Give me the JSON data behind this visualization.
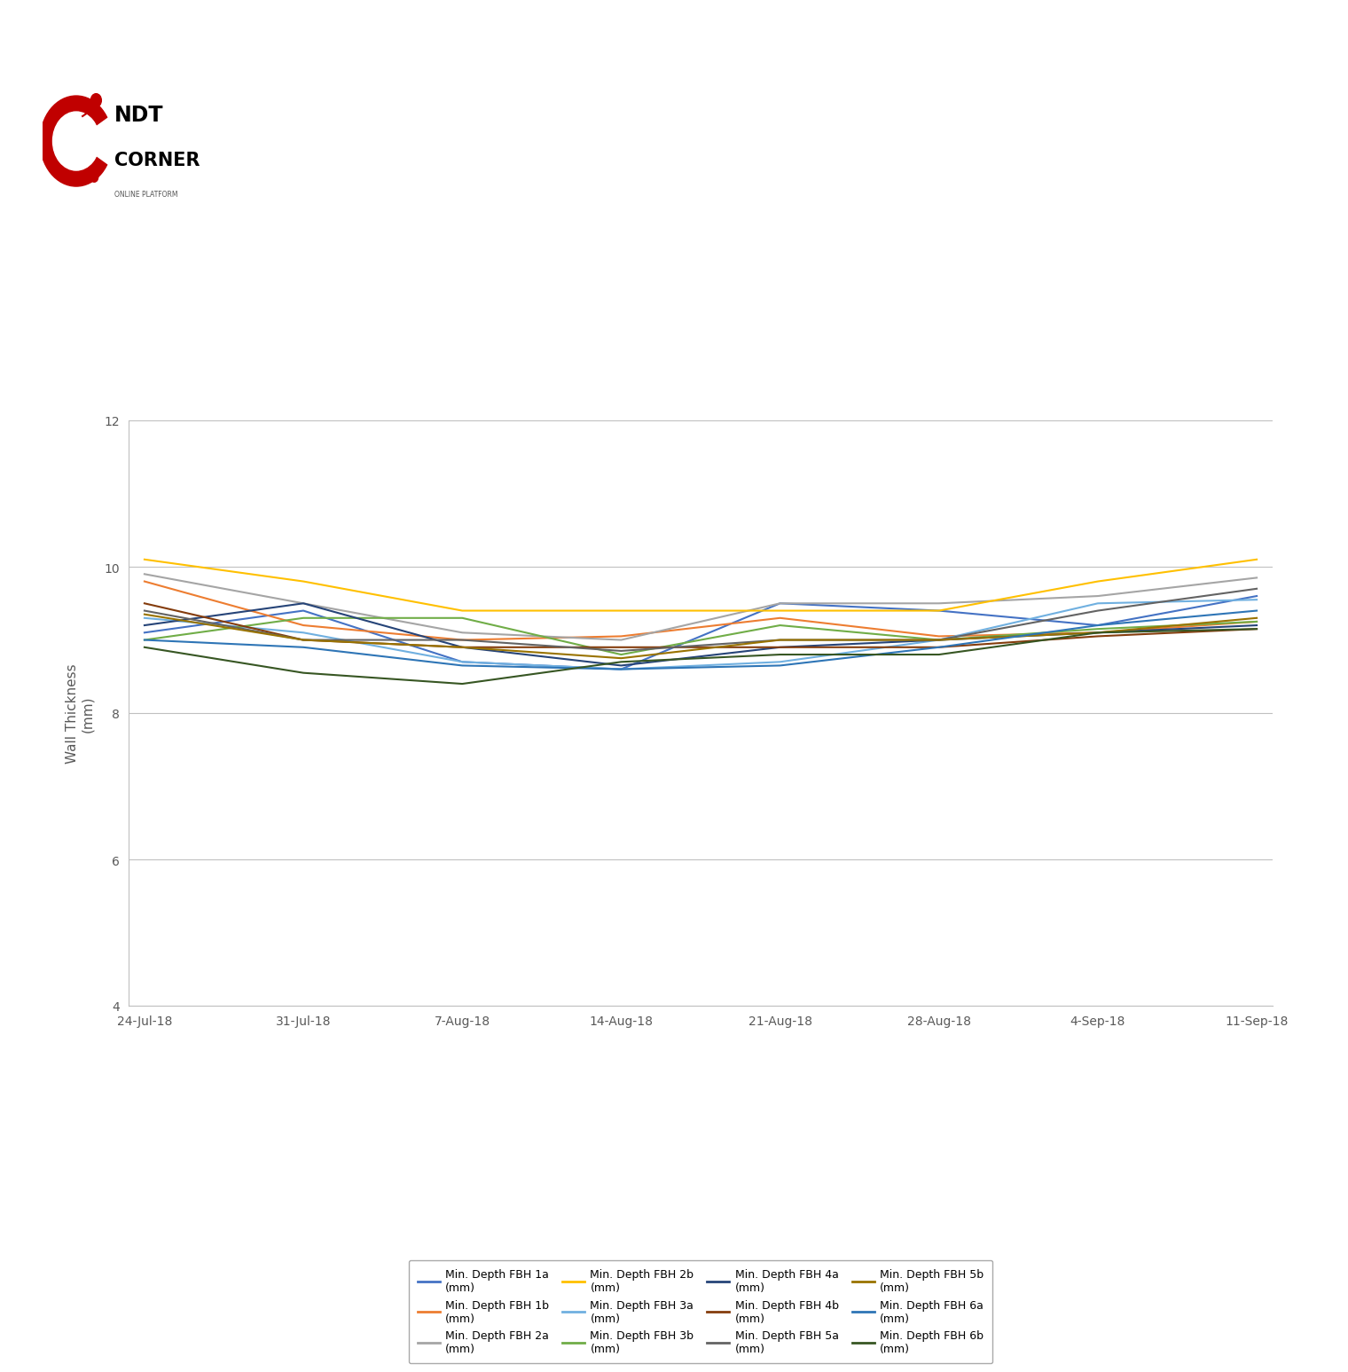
{
  "x_labels": [
    "24-Jul-18",
    "31-Jul-18",
    "7-Aug-18",
    "14-Aug-18",
    "21-Aug-18",
    "28-Aug-18",
    "4-Sep-18",
    "11-Sep-18"
  ],
  "x_positions": [
    0,
    1,
    2,
    3,
    4,
    5,
    6,
    7
  ],
  "ylabel": "Wall Thickness\n(mm)",
  "ylim": [
    4,
    12
  ],
  "yticks": [
    4,
    6,
    8,
    10,
    12
  ],
  "series": [
    {
      "label": "Min. Depth FBH 1a\n(mm)",
      "color": "#4472C4",
      "values": [
        9.1,
        9.4,
        8.7,
        8.6,
        9.5,
        9.4,
        9.2,
        9.6
      ]
    },
    {
      "label": "Min. Depth FBH 1b\n(mm)",
      "color": "#ED7D31",
      "values": [
        9.8,
        9.2,
        9.0,
        9.05,
        9.3,
        9.05,
        9.1,
        9.25
      ]
    },
    {
      "label": "Min. Depth FBH 2a\n(mm)",
      "color": "#A5A5A5",
      "values": [
        9.9,
        9.5,
        9.1,
        9.0,
        9.5,
        9.5,
        9.6,
        9.85
      ]
    },
    {
      "label": "Min. Depth FBH 2b\n(mm)",
      "color": "#FFC000",
      "values": [
        10.1,
        9.8,
        9.4,
        9.4,
        9.4,
        9.4,
        9.8,
        10.1
      ]
    },
    {
      "label": "Min. Depth FBH 3a\n(mm)",
      "color": "#70B0E0",
      "values": [
        9.3,
        9.1,
        8.7,
        8.6,
        8.7,
        9.0,
        9.5,
        9.55
      ]
    },
    {
      "label": "Min. Depth FBH 3b\n(mm)",
      "color": "#70AD47",
      "values": [
        9.0,
        9.3,
        9.3,
        8.8,
        9.2,
        9.0,
        9.15,
        9.25
      ]
    },
    {
      "label": "Min. Depth FBH 4a\n(mm)",
      "color": "#264478",
      "values": [
        9.2,
        9.5,
        8.9,
        8.65,
        8.9,
        9.0,
        9.1,
        9.2
      ]
    },
    {
      "label": "Min. Depth FBH 4b\n(mm)",
      "color": "#843C0C",
      "values": [
        9.5,
        9.0,
        8.9,
        8.9,
        8.9,
        8.9,
        9.05,
        9.15
      ]
    },
    {
      "label": "Min. Depth FBH 5a\n(mm)",
      "color": "#636363",
      "values": [
        9.4,
        9.0,
        9.0,
        8.85,
        9.0,
        9.0,
        9.4,
        9.7
      ]
    },
    {
      "label": "Min. Depth FBH 5b\n(mm)",
      "color": "#997300",
      "values": [
        9.35,
        9.0,
        8.9,
        8.75,
        9.0,
        9.0,
        9.1,
        9.3
      ]
    },
    {
      "label": "Min. Depth FBH 6a\n(mm)",
      "color": "#2E75B6",
      "values": [
        9.0,
        8.9,
        8.65,
        8.6,
        8.65,
        8.9,
        9.2,
        9.4
      ]
    },
    {
      "label": "Min. Depth FBH 6b\n(mm)",
      "color": "#375623",
      "values": [
        8.9,
        8.55,
        8.4,
        8.7,
        8.8,
        8.8,
        9.1,
        9.15
      ]
    }
  ],
  "background_color": "#FFFFFF",
  "plot_bg_color": "#FFFFFF",
  "grid_color": "#C0C0C0",
  "tick_label_color": "#595959",
  "axis_label_color": "#595959",
  "legend_fontsize": 9,
  "bottom_bar_color": "#C00000",
  "left_bar_color": "#C00000",
  "logo_red": "#C00000",
  "logo_black": "#000000"
}
